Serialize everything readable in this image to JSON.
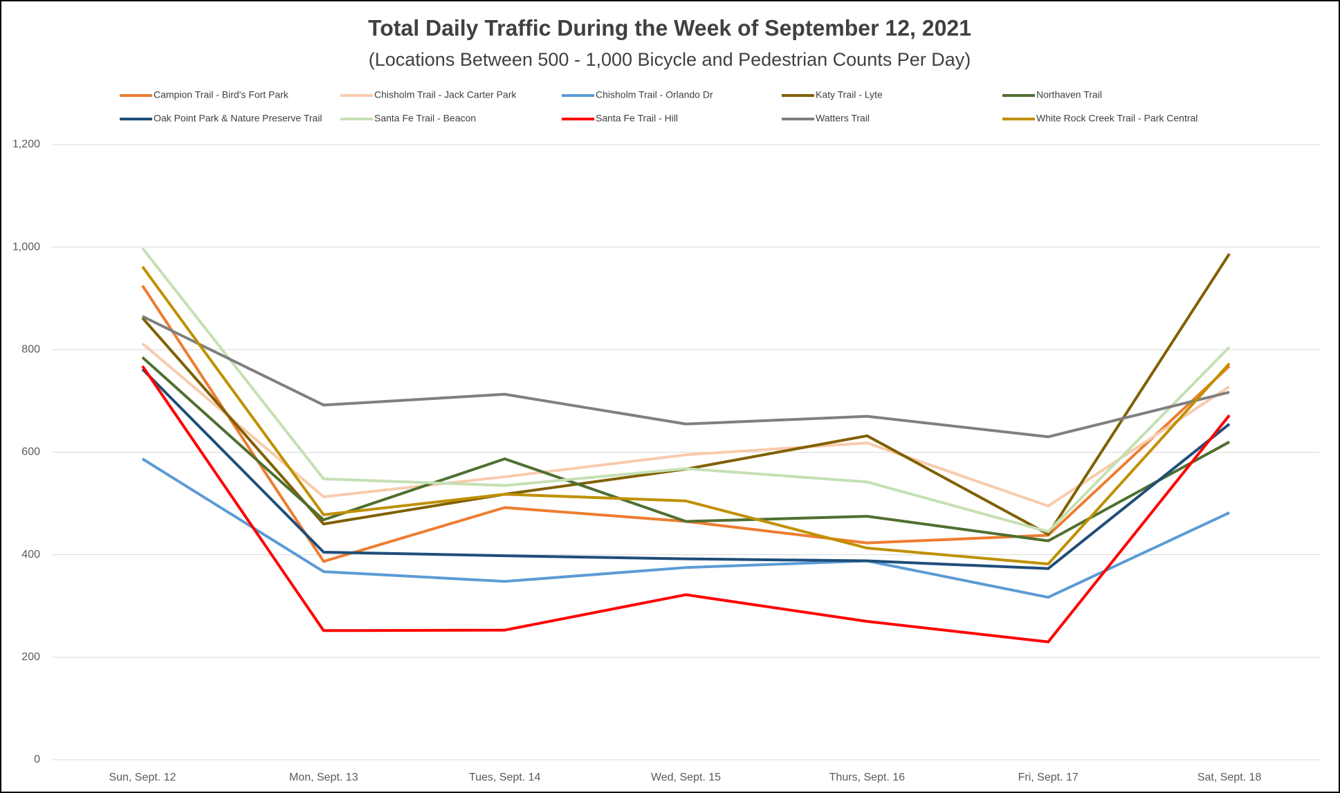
{
  "chart_data": {
    "type": "line",
    "title": "Total Daily Traffic During the Week of September 12, 2021",
    "subtitle": "(Locations Between 500 - 1,000 Bicycle and Pedestrian Counts Per Day)",
    "categories": [
      "Sun, Sept. 12",
      "Mon, Sept. 13",
      "Tues, Sept. 14",
      "Wed, Sept. 15",
      "Thurs, Sept. 16",
      "Fri, Sept. 17",
      "Sat, Sept. 18"
    ],
    "ylim": [
      0,
      1200
    ],
    "yticks": [
      0,
      200,
      400,
      600,
      800,
      {
        "value": 1000,
        "label": "1,000"
      },
      {
        "value": 1200,
        "label": "1,200"
      }
    ],
    "grid": true,
    "legend": "top",
    "series": [
      {
        "name": "Campion Trail - Bird's Fort Park",
        "color": "#ed7d31",
        "values": [
          925,
          387,
          492,
          465,
          423,
          438,
          768
        ]
      },
      {
        "name": "Chisholm Trail - Jack Carter Park",
        "color": "#f8cbad",
        "values": [
          812,
          513,
          552,
          595,
          618,
          495,
          728
        ]
      },
      {
        "name": "Chisholm Trail - Orlando Dr",
        "color": "#5b9bd5",
        "values": [
          587,
          367,
          348,
          375,
          388,
          317,
          482
        ]
      },
      {
        "name": "Katy Trail - Lyte",
        "color": "#806000",
        "values": [
          862,
          460,
          518,
          567,
          632,
          440,
          987
        ]
      },
      {
        "name": "Northaven Trail",
        "color": "#4f6f2f",
        "values": [
          785,
          468,
          587,
          465,
          475,
          427,
          620
        ]
      },
      {
        "name": "Oak Point Park & Nature Preserve Trail",
        "color": "#1f4e79",
        "values": [
          762,
          405,
          398,
          392,
          388,
          373,
          655
        ]
      },
      {
        "name": "Santa Fe Trail - Beacon",
        "color": "#c5e0b4",
        "values": [
          998,
          548,
          535,
          568,
          542,
          445,
          805
        ]
      },
      {
        "name": "Santa Fe Trail - Hill",
        "color": "#ff0000",
        "values": [
          768,
          252,
          253,
          322,
          270,
          230,
          672
        ]
      },
      {
        "name": "Watters Trail",
        "color": "#7f7f7f",
        "values": [
          865,
          692,
          713,
          655,
          670,
          630,
          717
        ]
      },
      {
        "name": "White Rock Creek Trail - Park Central",
        "color": "#bf9000",
        "values": [
          962,
          478,
          518,
          505,
          413,
          382,
          773
        ]
      }
    ]
  }
}
